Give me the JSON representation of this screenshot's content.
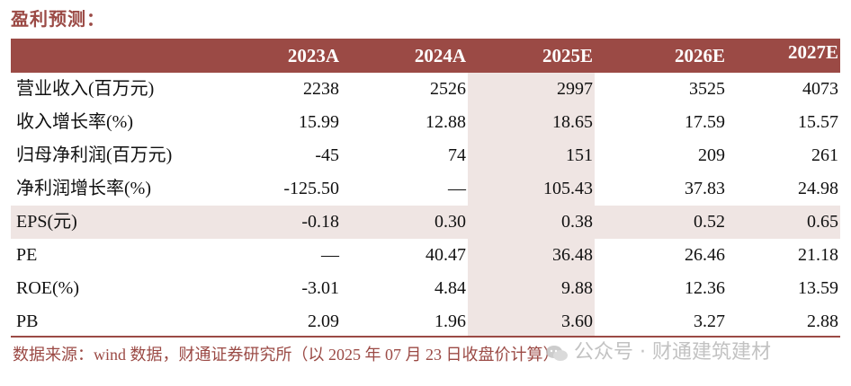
{
  "title": "盈利预测：",
  "header": {
    "columns": [
      "2023A",
      "2024A",
      "2025E",
      "2026E",
      "2027E"
    ]
  },
  "rows": [
    {
      "label": "营业收入(百万元)",
      "values": [
        "2238",
        "2526",
        "2997",
        "3525",
        "4073"
      ]
    },
    {
      "label": "收入增长率(%)",
      "values": [
        "15.99",
        "12.88",
        "18.65",
        "17.59",
        "15.57"
      ]
    },
    {
      "label": "归母净利润(百万元)",
      "values": [
        "-45",
        "74",
        "151",
        "209",
        "261"
      ]
    },
    {
      "label": "净利润增长率(%)",
      "values": [
        "-125.50",
        "—",
        "105.43",
        "37.83",
        "24.98"
      ]
    },
    {
      "label": "EPS(元)",
      "values": [
        "-0.18",
        "0.30",
        "0.38",
        "0.52",
        "0.65"
      ]
    },
    {
      "label": "PE",
      "values": [
        "—",
        "40.47",
        "36.48",
        "26.46",
        "21.18"
      ]
    },
    {
      "label": "ROE(%)",
      "values": [
        "-3.01",
        "4.84",
        "9.88",
        "12.36",
        "13.59"
      ]
    },
    {
      "label": "PB",
      "values": [
        "2.09",
        "1.96",
        "3.60",
        "3.27",
        "2.88"
      ]
    }
  ],
  "source": "数据来源：wind 数据，财通证券研究所（以 2025 年 07 月 23 日收盘价计算）",
  "watermark": {
    "icon": "wechat-icon",
    "text": "公众号 · 财通建筑建材"
  },
  "colors": {
    "accent": "#9b4a45",
    "highlight": "#efe5e3"
  }
}
